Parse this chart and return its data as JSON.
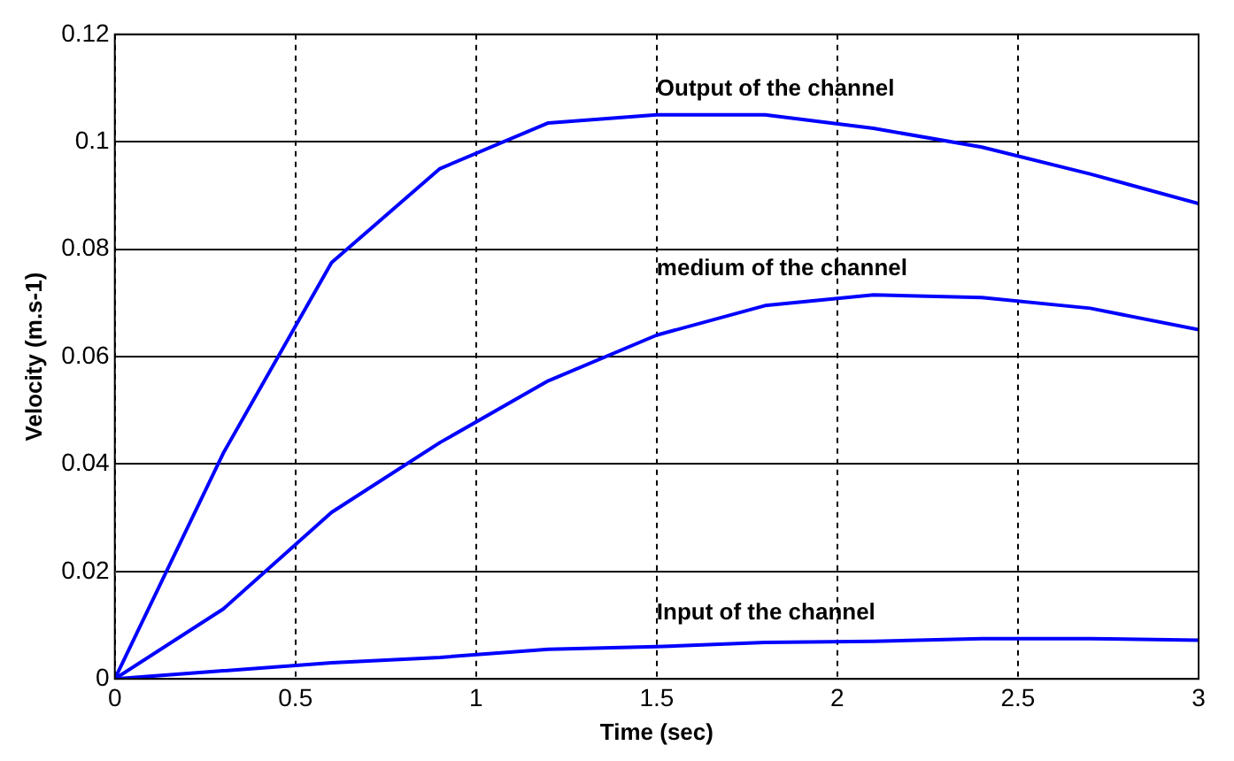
{
  "chart_data": {
    "type": "line",
    "xlabel": "Time (sec)",
    "ylabel": "Velocity (m.s-1)",
    "x": [
      0,
      0.3,
      0.6,
      0.9,
      1.2,
      1.5,
      1.8,
      2.1,
      2.4,
      2.7,
      3.0
    ],
    "series": [
      {
        "name": "Output of the channel",
        "color": "#0000ff",
        "values": [
          0,
          0.042,
          0.0775,
          0.095,
          0.1035,
          0.105,
          0.105,
          0.1025,
          0.099,
          0.094,
          0.0885
        ]
      },
      {
        "name": "medium of the channel",
        "color": "#0000ff",
        "values": [
          0,
          0.013,
          0.031,
          0.044,
          0.0555,
          0.064,
          0.0695,
          0.0715,
          0.071,
          0.069,
          0.065
        ]
      },
      {
        "name": "Input of the channel",
        "color": "#0000ff",
        "values": [
          0,
          0.0015,
          0.003,
          0.004,
          0.0055,
          0.006,
          0.0068,
          0.007,
          0.0075,
          0.0075,
          0.0072
        ]
      }
    ],
    "xlim": [
      0,
      3
    ],
    "xticks": [
      0,
      0.5,
      1,
      1.5,
      2,
      2.5,
      3
    ],
    "ylim": [
      0,
      0.12
    ],
    "yticks": [
      0,
      0.02,
      0.04,
      0.06,
      0.08,
      0.1,
      0.12
    ],
    "grid": true,
    "legend": false,
    "marker": "none",
    "line_style": "solid"
  }
}
